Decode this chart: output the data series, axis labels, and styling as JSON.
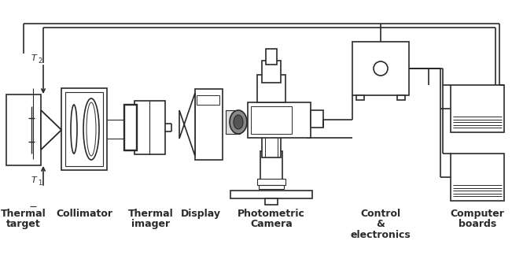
{
  "bg_color": "#ffffff",
  "lc": "#2a2a2a",
  "lw": 1.2,
  "figsize": [
    6.51,
    3.34
  ],
  "dpi": 100,
  "labels": {
    "thermal_target": [
      "Thermal",
      "target"
    ],
    "collimator": "Collimator",
    "thermal_imager": [
      "Thermal",
      "imager"
    ],
    "display": "Display",
    "photometric": [
      "Photometric",
      "Camera"
    ],
    "control": [
      "Control",
      "&",
      "electronics"
    ],
    "computer": [
      "Computer",
      "boards"
    ]
  }
}
